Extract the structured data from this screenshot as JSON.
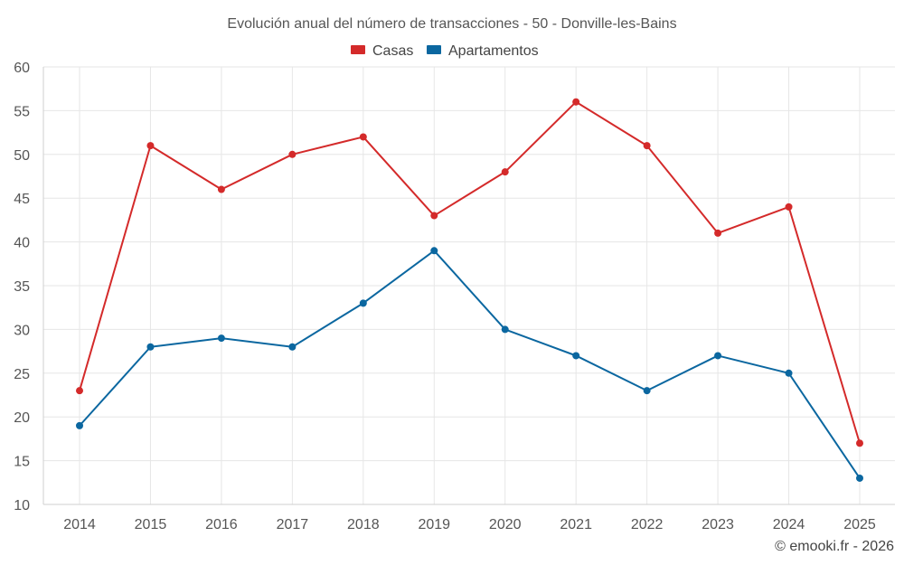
{
  "chart_data": {
    "type": "line",
    "title": "Evolución anual del número de transacciones - 50 - Donville-les-Bains",
    "categories": [
      "2014",
      "2015",
      "2016",
      "2017",
      "2018",
      "2019",
      "2020",
      "2021",
      "2022",
      "2023",
      "2024",
      "2025"
    ],
    "series": [
      {
        "name": "Casas",
        "color": "#d42a2a",
        "values": [
          23,
          51,
          46,
          50,
          52,
          43,
          48,
          56,
          51,
          41,
          44,
          17
        ]
      },
      {
        "name": "Apartamentos",
        "color": "#0b67a0",
        "values": [
          19,
          28,
          29,
          28,
          33,
          39,
          30,
          27,
          23,
          27,
          25,
          13
        ]
      }
    ],
    "ylim": [
      10,
      60
    ],
    "yticks": [
      "10",
      "15",
      "20",
      "25",
      "30",
      "35",
      "40",
      "45",
      "50",
      "55",
      "60"
    ],
    "xlabel": "",
    "ylabel": "",
    "grid": true,
    "legend_position": "top-center",
    "credit": "© emooki.fr - 2026"
  }
}
